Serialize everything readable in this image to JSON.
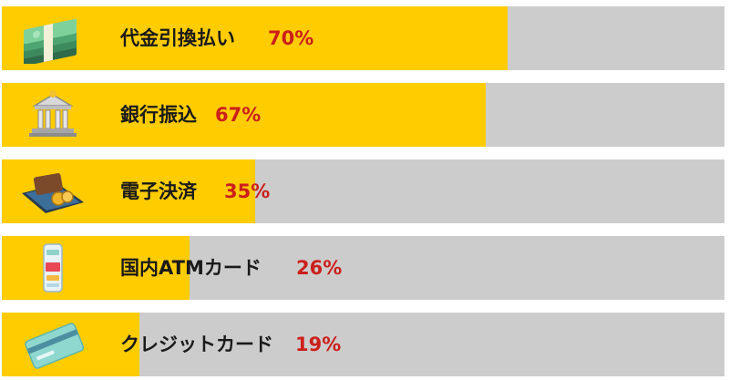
{
  "colors": {
    "bar_fill": "#ffcc00",
    "bar_track": "#cccccc",
    "label_text": "#1a1a1a",
    "percent_text": "#cc1f1a"
  },
  "chart_data": {
    "type": "bar",
    "orientation": "horizontal",
    "categories": [
      "代金引換払い",
      "銀行振込",
      "電子決済",
      "国内ATMカード",
      "クレジットカード"
    ],
    "values": [
      70,
      67,
      35,
      26,
      19
    ],
    "value_labels": [
      "70%",
      "67%",
      "35%",
      "26%",
      "19%"
    ],
    "icons": [
      "cash-stack-icon",
      "bank-icon",
      "wallet-phone-icon",
      "mobile-card-icon",
      "credit-card-icon"
    ],
    "unit": "%",
    "xlim": [
      0,
      100
    ],
    "grid": false,
    "legend": "none"
  }
}
